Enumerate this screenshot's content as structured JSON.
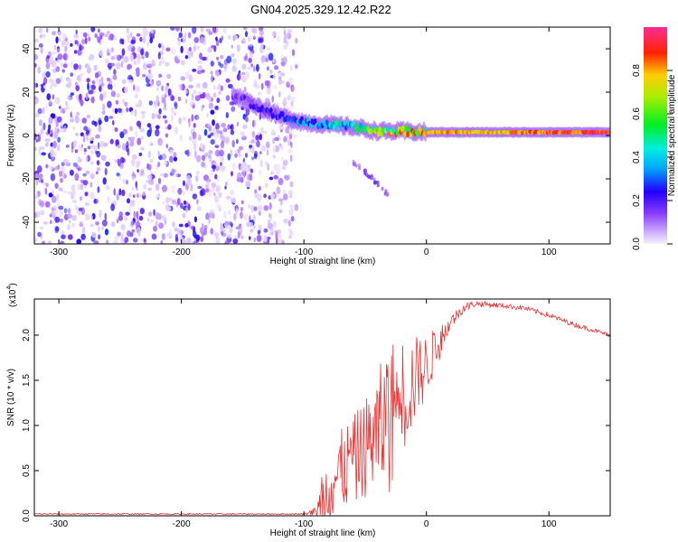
{
  "title": "GN04.2025.329.12.42.R22",
  "chart_data": [
    {
      "type": "heatmap",
      "name": "spectrogram",
      "xlabel": "Height of straight line (km)",
      "ylabel": "Frequency (Hz)",
      "xlim": [
        -320,
        150
      ],
      "ylim": [
        -50,
        50
      ],
      "x_ticks": [
        -300,
        -200,
        -100,
        0,
        100
      ],
      "x_tick_labels": [
        "-300",
        "-200",
        "-100",
        "0",
        "100"
      ],
      "y_ticks": [
        -40,
        -20,
        0,
        20,
        40
      ],
      "y_tick_labels": [
        "-40",
        "-20",
        "0",
        "20",
        "40"
      ],
      "colorbar": {
        "label": "Normalized spectral amplitude",
        "range": [
          0,
          1
        ],
        "ticks": [
          0.0,
          0.2,
          0.4,
          0.6,
          0.8
        ],
        "tick_labels": [
          "0.0",
          "0.2",
          "0.4",
          "0.6",
          "0.8"
        ]
      },
      "noise_region_x": [
        -320,
        -110
      ],
      "ridge": {
        "x": [
          -158,
          -140,
          -120,
          -100,
          -80,
          -60,
          -40,
          -20,
          0,
          50,
          100,
          150
        ],
        "frequency": [
          19,
          14,
          9,
          6,
          5,
          4,
          2,
          2,
          1.5,
          1.5,
          1.5,
          1.5
        ],
        "amplitude": [
          0.15,
          0.2,
          0.25,
          0.35,
          0.45,
          0.5,
          0.7,
          0.8,
          0.85,
          0.8,
          0.9,
          0.95
        ]
      },
      "branch": {
        "x": [
          -60,
          -50,
          -40,
          -30
        ],
        "frequency": [
          -12,
          -17,
          -22,
          -28
        ]
      }
    },
    {
      "type": "line",
      "name": "snr",
      "xlabel": "Height of straight line (km)",
      "ylabel": "SNR (10 * v/v)",
      "y_multiplier_label": "(x10",
      "y_multiplier_exponent": "4",
      "y_multiplier_close": ")",
      "xlim": [
        -320,
        150
      ],
      "ylim": [
        0.0,
        2.4
      ],
      "x_ticks": [
        -300,
        -200,
        -100,
        0,
        100
      ],
      "x_tick_labels": [
        "-300",
        "-200",
        "-100",
        "0",
        "100"
      ],
      "y_ticks": [
        0.0,
        0.5,
        1.0,
        1.5,
        2.0
      ],
      "y_tick_labels": [
        "0.0",
        "0.5",
        "1.0",
        "1.5",
        "2.0"
      ],
      "color": "#ee3333",
      "envelope": {
        "x": [
          -320,
          -100,
          -90,
          -80,
          -70,
          -60,
          -50,
          -40,
          -30,
          -20,
          -10,
          0,
          10,
          20,
          30,
          40,
          60,
          80,
          100,
          120,
          150
        ],
        "mean": [
          0.02,
          0.02,
          0.05,
          0.3,
          0.5,
          0.6,
          0.75,
          0.9,
          1.1,
          1.3,
          1.5,
          1.65,
          1.9,
          2.15,
          2.3,
          2.35,
          2.33,
          2.3,
          2.22,
          2.12,
          2.0
        ],
        "spread": [
          0.01,
          0.01,
          0.05,
          0.45,
          0.45,
          0.5,
          0.55,
          0.7,
          0.85,
          0.7,
          0.5,
          0.35,
          0.2,
          0.12,
          0.08,
          0.05,
          0.04,
          0.04,
          0.04,
          0.04,
          0.03
        ]
      }
    }
  ]
}
